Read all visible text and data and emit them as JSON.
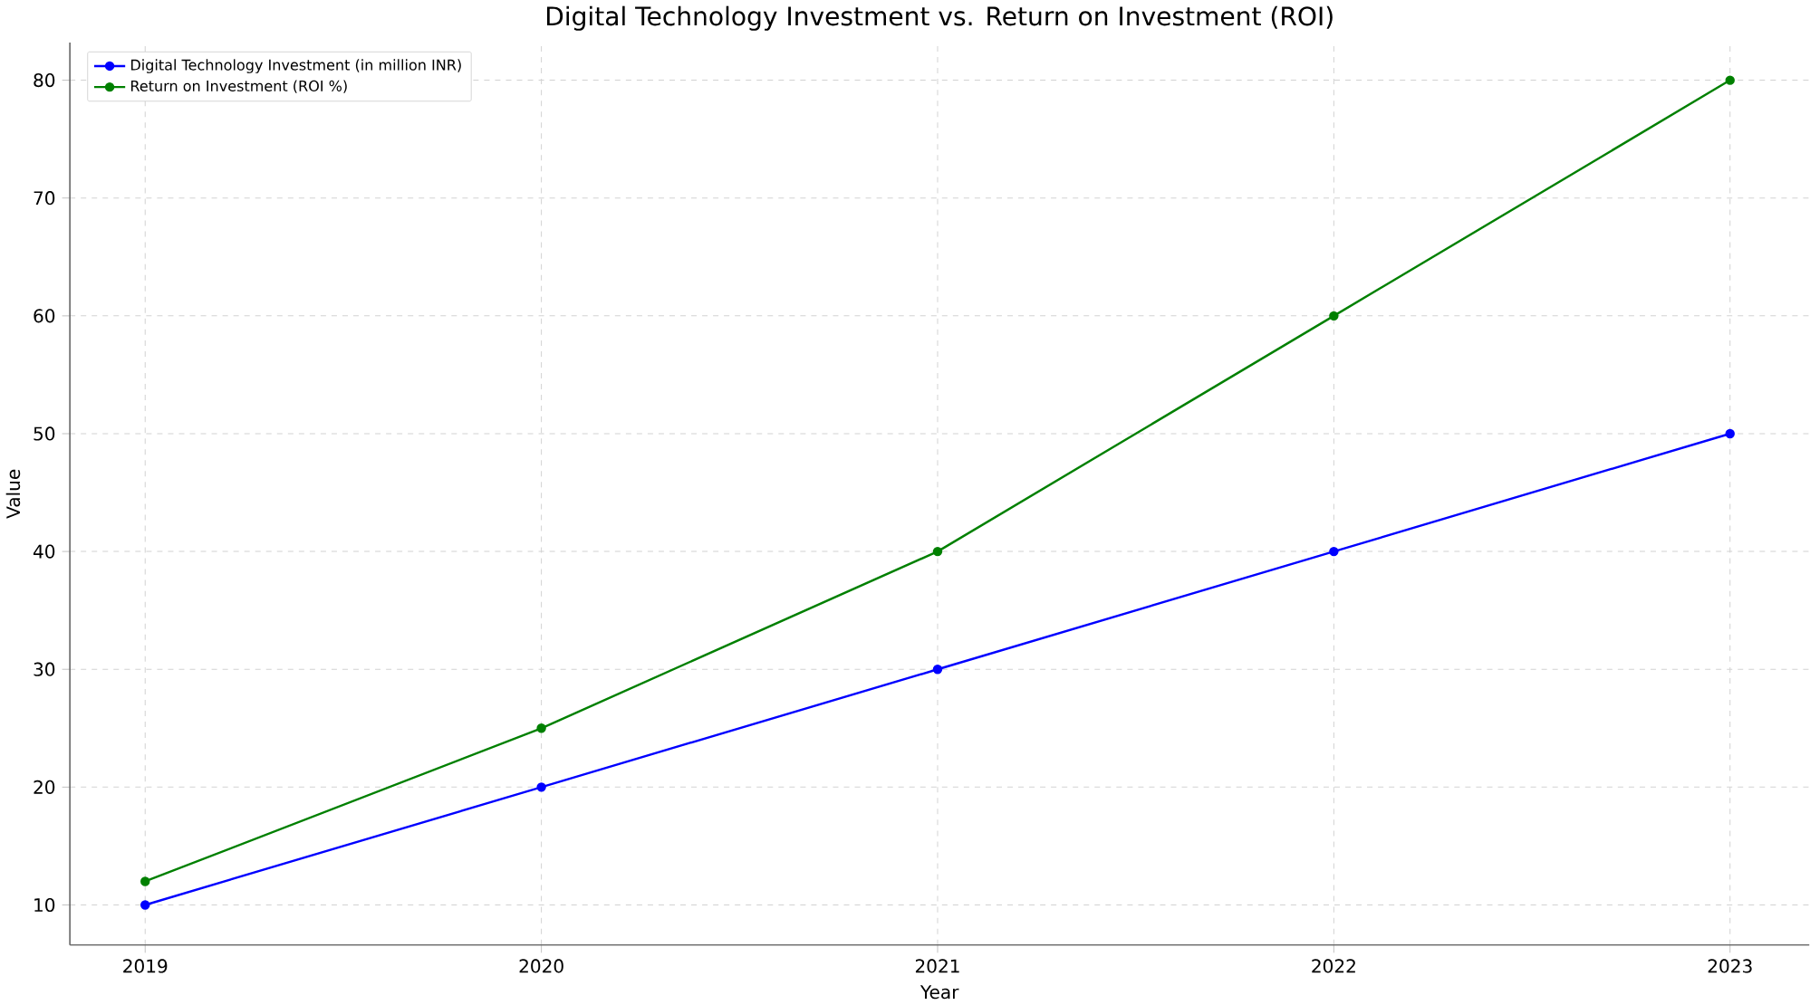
{
  "chart_data": {
    "type": "line",
    "title": "Digital Technology Investment vs. Return on Investment (ROI)",
    "xlabel": "Year",
    "ylabel": "Value",
    "x": [
      2019,
      2020,
      2021,
      2022,
      2023
    ],
    "series": [
      {
        "name": "Digital Technology Investment (in million INR)",
        "color": "#0000ff",
        "values": [
          10,
          20,
          30,
          40,
          50
        ]
      },
      {
        "name": "Return on Investment (ROI %)",
        "color": "#008000",
        "values": [
          12,
          25,
          40,
          60,
          80
        ]
      }
    ],
    "xlim": [
      2018.81,
      2023.2
    ],
    "ylim": [
      6.6,
      83.2
    ],
    "xticks": [
      2019,
      2020,
      2021,
      2022,
      2023
    ],
    "yticks": [
      10,
      20,
      30,
      40,
      50,
      60,
      70,
      80
    ],
    "grid": true,
    "legend": "top left",
    "marker": "circle",
    "line_style": "solid"
  }
}
